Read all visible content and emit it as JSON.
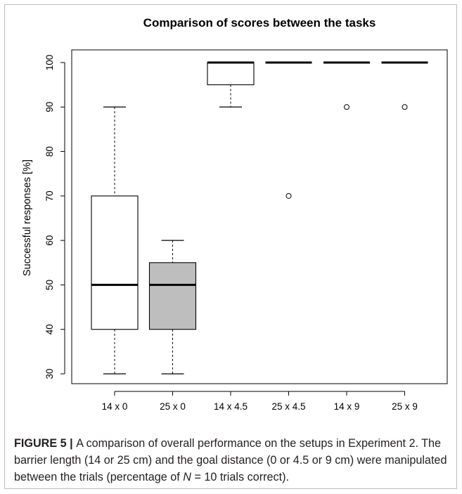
{
  "caption": {
    "label": "FIGURE 5",
    "separator": " | ",
    "text_part1": "A comparison of overall performance on the setups in Experiment 2. The barrier length (14 or 25 cm) and the goal distance (0 or 4.5 or 9 cm) were manipulated between the trials (percentage of ",
    "italic_var": "N",
    "text_part2": " = 10 trials correct)."
  },
  "chart_data": {
    "type": "box",
    "title": "Comparison of scores between the tasks",
    "xlabel": "",
    "ylabel": "Successful responses [%]",
    "ylim": [
      28,
      102
    ],
    "yticks": [
      30,
      40,
      50,
      60,
      70,
      80,
      90,
      100
    ],
    "categories": [
      "14 x 0",
      "25 x 0",
      "14 x 4.5",
      "25 x 4.5",
      "14 x 9",
      "25 x 9"
    ],
    "boxes": [
      {
        "category": "14 x 0",
        "whisker_low": 30,
        "q1": 40,
        "median": 50,
        "q3": 70,
        "whisker_high": 90,
        "outliers": [],
        "fill": "#ffffff"
      },
      {
        "category": "25 x 0",
        "whisker_low": 30,
        "q1": 40,
        "median": 50,
        "q3": 55,
        "whisker_high": 60,
        "outliers": [],
        "fill": "#bebebe"
      },
      {
        "category": "14 x 4.5",
        "whisker_low": 90,
        "q1": 95,
        "median": 100,
        "q3": 100,
        "whisker_high": 100,
        "outliers": [],
        "fill": "#ffffff"
      },
      {
        "category": "25 x 4.5",
        "whisker_low": 100,
        "q1": 100,
        "median": 100,
        "q3": 100,
        "whisker_high": 100,
        "outliers": [
          70
        ],
        "fill": "#ffffff"
      },
      {
        "category": "14 x 9",
        "whisker_low": 100,
        "q1": 100,
        "median": 100,
        "q3": 100,
        "whisker_high": 100,
        "outliers": [
          90
        ],
        "fill": "#ffffff"
      },
      {
        "category": "25 x 9",
        "whisker_low": 100,
        "q1": 100,
        "median": 100,
        "q3": 100,
        "whisker_high": 100,
        "outliers": [
          90
        ],
        "fill": "#ffffff"
      }
    ],
    "grid": false,
    "legend": "none"
  }
}
